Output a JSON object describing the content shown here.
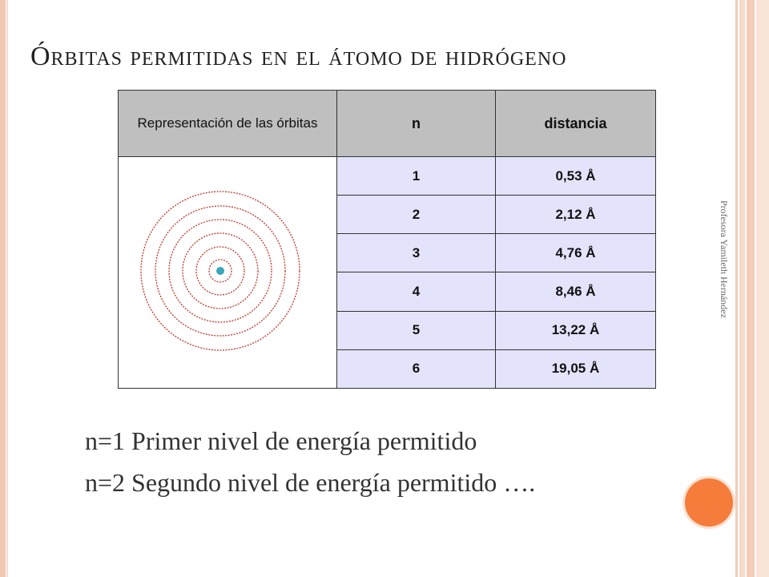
{
  "slide": {
    "title": "Órbitas permitidas en el átomo de hidrógeno",
    "watermark": "Profesora Yamileth Hernández"
  },
  "table": {
    "headers": {
      "representation": "Representación de las órbitas",
      "n": "n",
      "distance": "distancia"
    },
    "rows": [
      {
        "n": "1",
        "distance": "0,53 Å"
      },
      {
        "n": "2",
        "distance": "2,12 Å"
      },
      {
        "n": "3",
        "distance": "4,76 Å"
      },
      {
        "n": "4",
        "distance": "8,46 Å"
      },
      {
        "n": "5",
        "distance": "13,22 Å"
      },
      {
        "n": "6",
        "distance": "19,05 Å"
      }
    ]
  },
  "diagram": {
    "orbit_count": 6,
    "orbit_color": "#c0392b",
    "nucleus_color": "#3aa6b9"
  },
  "body": {
    "lines": [
      "n=1 Primer nivel de energía permitido",
      "n=2 Segundo nivel de energía permitido …."
    ]
  },
  "colors": {
    "accent": "#f57c3a",
    "header_bg": "#bfbfbf",
    "row_bg": "#e3e3fb"
  }
}
